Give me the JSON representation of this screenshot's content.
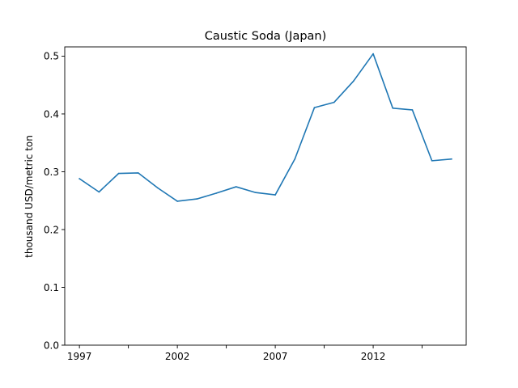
{
  "chart_data": {
    "type": "line",
    "title": "Caustic Soda (Japan)",
    "xlabel": "",
    "ylabel": "thousand USD/metric ton",
    "x": [
      1997,
      1998,
      1999,
      2000,
      2001,
      2002,
      2003,
      2004,
      2005,
      2006,
      2007,
      2008,
      2009,
      2010,
      2011,
      2012,
      2013,
      2014,
      2015,
      2016
    ],
    "series": [
      {
        "values": [
          0.288,
          0.265,
          0.297,
          0.298,
          0.272,
          0.249,
          0.253,
          0.263,
          0.274,
          0.264,
          0.26,
          0.322,
          0.411,
          0.42,
          0.457,
          0.504,
          0.41,
          0.407,
          0.319,
          0.322
        ],
        "color": "#1f77b4"
      }
    ],
    "xlim": [
      1996.25,
      2016.75
    ],
    "ylim": [
      0,
      0.516
    ],
    "x_major_ticks": [
      1997,
      2002,
      2007,
      2012
    ],
    "x_minor_ticks": [
      1999.5,
      2004.5,
      2009.5,
      2014.5
    ],
    "y_ticks": [
      0.0,
      0.1,
      0.2,
      0.3,
      0.4,
      0.5
    ],
    "grid": false,
    "legend": "none"
  }
}
